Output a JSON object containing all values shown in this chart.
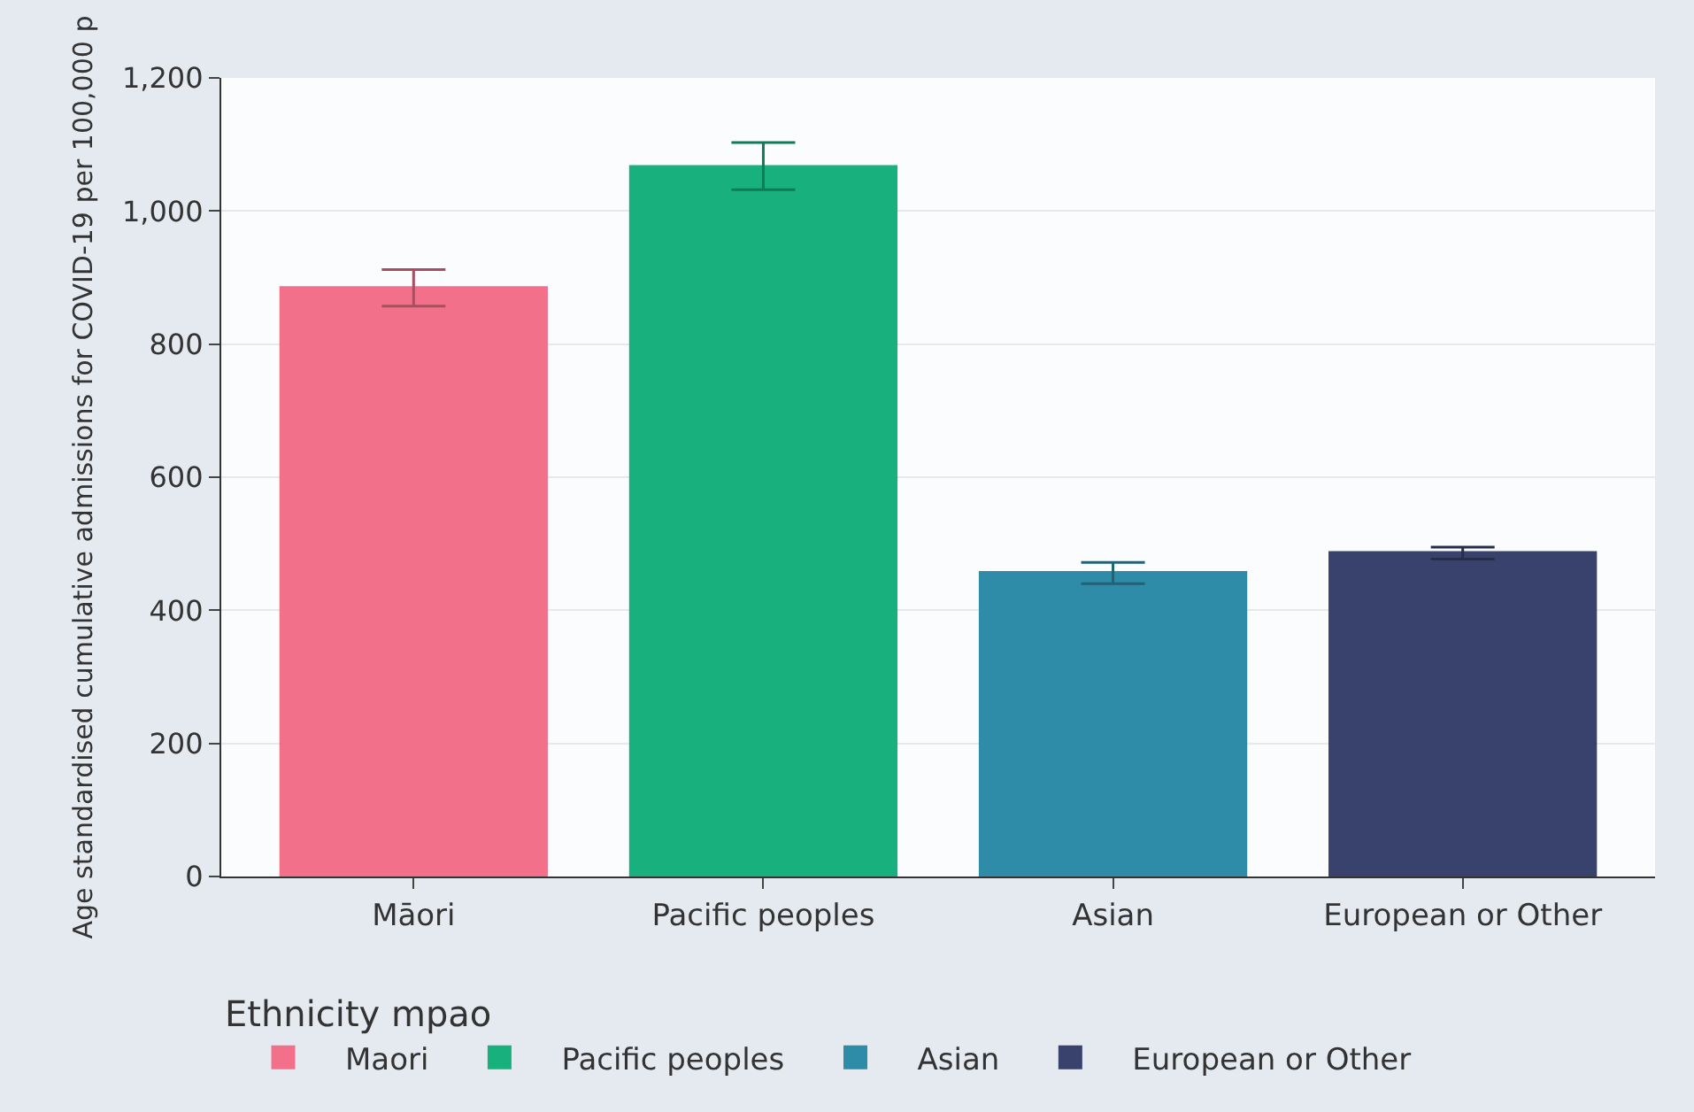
{
  "chart_data": {
    "type": "bar",
    "ylabel": "Age standardised cumulative admissions for COVID-19 per 100,000 p",
    "legend_title": "Ethnicity mpao",
    "categories": [
      "Māori",
      "Pacific peoples",
      "Asian",
      "European or Other"
    ],
    "series": [
      {
        "name": "Maori",
        "color": "#f2708a",
        "values": [
          885,
          null,
          null,
          null
        ],
        "errors": [
          [
            857,
            912
          ],
          null,
          null,
          null
        ]
      },
      {
        "name": "Pacific peoples",
        "color": "#18b07d",
        "values": [
          null,
          1067,
          null,
          null
        ],
        "errors": [
          null,
          [
            1032,
            1103
          ],
          null,
          null
        ]
      },
      {
        "name": "Asian",
        "color": "#2e8ca8",
        "values": [
          null,
          null,
          457,
          null
        ],
        "errors": [
          null,
          null,
          [
            440,
            472
          ],
          null
        ]
      },
      {
        "name": "European or Other",
        "color": "#38426c",
        "values": [
          null,
          null,
          null,
          487
        ],
        "errors": [
          null,
          null,
          null,
          [
            477,
            495
          ]
        ]
      }
    ],
    "ylim": [
      0,
      1200
    ],
    "yticks": [
      0,
      {
        "value": 200,
        "label": "200"
      },
      400,
      600,
      800,
      {
        "value": 1000,
        "label": "1,000"
      },
      {
        "value": 1200,
        "label": "1,200"
      }
    ],
    "grid": "y",
    "legend": "bottom"
  }
}
